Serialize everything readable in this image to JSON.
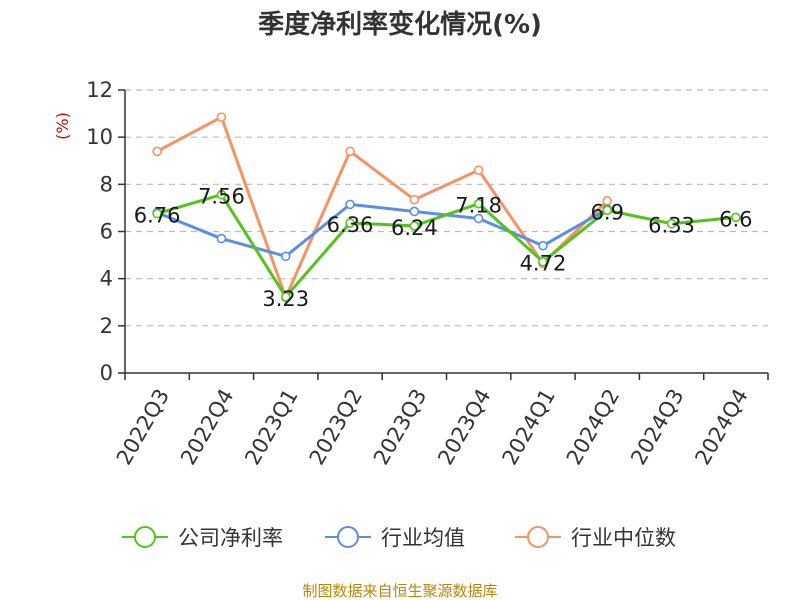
{
  "chart_data": {
    "type": "line",
    "title": "季度净利率变化情况(%)",
    "ylabel": "(%)",
    "ylim": [
      0,
      12
    ],
    "yticks": [
      0,
      2,
      4,
      6,
      8,
      10,
      12
    ],
    "categories": [
      "2022Q3",
      "2022Q4",
      "2023Q1",
      "2023Q2",
      "2023Q3",
      "2023Q4",
      "2024Q1",
      "2024Q2",
      "2024Q3",
      "2024Q4"
    ],
    "grid": true,
    "legend_position": "bottom",
    "series": [
      {
        "name": "公司净利率",
        "color": "#52c41a",
        "values": [
          6.76,
          7.56,
          3.23,
          6.36,
          6.24,
          7.18,
          4.72,
          6.9,
          6.33,
          6.6
        ],
        "data_labels": [
          "6.76",
          "7.56",
          "3.23",
          "6.36",
          "6.24",
          "7.18",
          "4.72",
          "6.9",
          "6.33",
          "6.6"
        ]
      },
      {
        "name": "行业均值",
        "color": "#5b8ee6",
        "values": [
          6.8,
          5.7,
          4.95,
          7.15,
          6.85,
          6.55,
          5.4,
          6.95,
          null,
          null
        ]
      },
      {
        "name": "行业中位数",
        "color": "#f79263",
        "values": [
          9.4,
          10.85,
          3.2,
          9.4,
          7.35,
          8.6,
          4.65,
          7.3,
          null,
          null
        ]
      }
    ]
  },
  "footer": {
    "source": "制图数据来自恒生聚源数据库"
  }
}
